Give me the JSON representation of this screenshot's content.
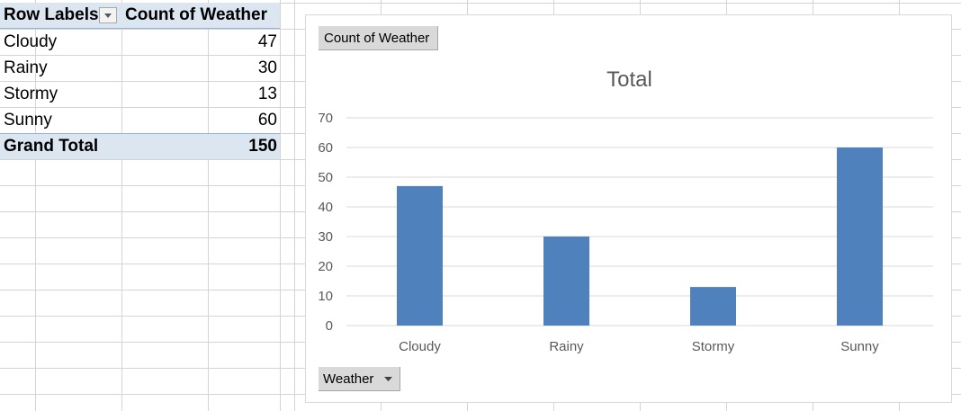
{
  "pivot": {
    "header": {
      "row_labels": "Row Labels",
      "count": "Count of Weather"
    },
    "rows": [
      {
        "label": "Cloudy",
        "value": "47"
      },
      {
        "label": "Rainy",
        "value": "30"
      },
      {
        "label": "Stormy",
        "value": "13"
      },
      {
        "label": "Sunny",
        "value": "60"
      }
    ],
    "total": {
      "label": "Grand Total",
      "value": "150"
    }
  },
  "chart": {
    "value_field_button": "Count of Weather",
    "axis_field_button": "Weather"
  },
  "chart_data": {
    "type": "bar",
    "title": "Total",
    "categories": [
      "Cloudy",
      "Rainy",
      "Stormy",
      "Sunny"
    ],
    "values": [
      47,
      30,
      13,
      60
    ],
    "ylim": [
      0,
      70
    ],
    "yticks": [
      0,
      10,
      20,
      30,
      40,
      50,
      60,
      70
    ],
    "bar_color": "#4f81bd",
    "grid": true
  },
  "colors": {
    "pivot_header_bg": "#dce6f1",
    "bar": "#4f81bd",
    "gridline": "#d9d9d9"
  }
}
